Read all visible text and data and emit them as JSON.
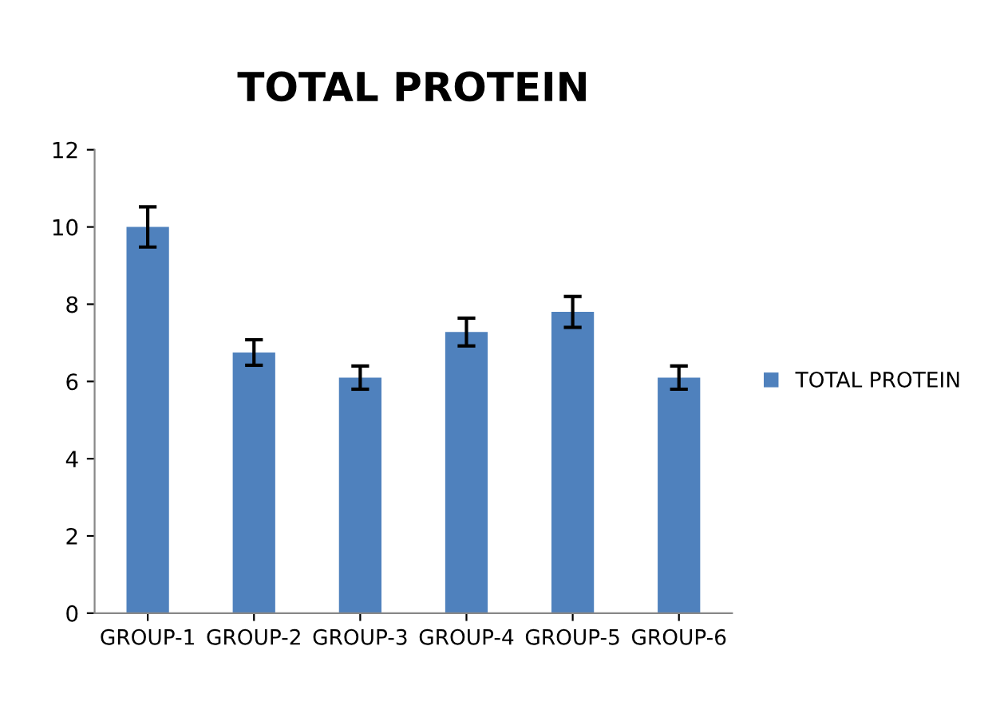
{
  "chart_data": {
    "type": "bar",
    "title": "TOTAL PROTEIN",
    "categories": [
      "GROUP-1",
      "GROUP-2",
      "GROUP-3",
      "GROUP-4",
      "GROUP-5",
      "GROUP-6"
    ],
    "series": [
      {
        "name": "TOTAL PROTEIN",
        "color": "#4f81bd",
        "values": [
          10.0,
          6.75,
          6.1,
          7.28,
          7.8,
          6.1
        ],
        "errors": [
          0.52,
          0.33,
          0.3,
          0.36,
          0.4,
          0.3
        ]
      }
    ],
    "ylim": [
      0,
      12
    ],
    "yticks": [
      0,
      2,
      4,
      6,
      8,
      10,
      12
    ],
    "grid": false,
    "legend": "right"
  }
}
